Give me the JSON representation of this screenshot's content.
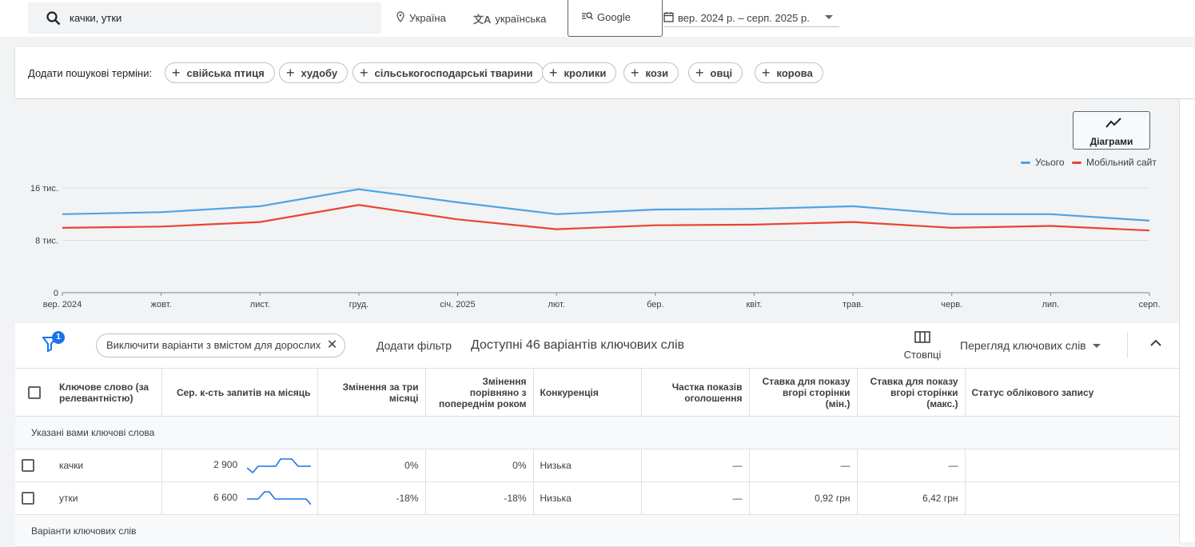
{
  "top": {
    "search_value": "качки, утки",
    "location": "Україна",
    "language": "українська",
    "network": "Google",
    "date_range": "вер. 2024 р. – серп. 2025 р."
  },
  "terms": {
    "label": "Додати пошукові терміни:",
    "items": [
      "свійська птиця",
      "худобу",
      "сільськогосподарські тварини",
      "кролики",
      "кози",
      "овці",
      "корова"
    ]
  },
  "chart_panel": {
    "diagram_button": "Діаграми",
    "legend_total": "Усього",
    "legend_mobile": "Мобільний сайт"
  },
  "chart_data": {
    "type": "line",
    "x": [
      "вер. 2024",
      "жовт.",
      "лист.",
      "груд.",
      "січ. 2025",
      "лют.",
      "бер.",
      "квіт.",
      "трав.",
      "черв.",
      "лип.",
      "серп."
    ],
    "yticks": [
      "16 тис.",
      "8 тис.",
      "0"
    ],
    "ylim": [
      0,
      16000
    ],
    "series": [
      {
        "name": "Усього",
        "color": "#4ea3e8",
        "values": [
          12000,
          12300,
          13200,
          15800,
          13800,
          12000,
          12700,
          12800,
          13200,
          12000,
          12000,
          11000
        ]
      },
      {
        "name": "Мобільний сайт",
        "color": "#ea4335",
        "values": [
          9900,
          10100,
          10800,
          13400,
          11200,
          9700,
          10300,
          10400,
          10800,
          9900,
          10200,
          9500
        ]
      }
    ],
    "grid": true,
    "legend": "top-right"
  },
  "toolbar": {
    "filter_count": "1",
    "exclude_chip": "Виключити варіанти з вмістом для дорослих",
    "add_filter": "Додати фільтр",
    "available": "Доступні 46 варіантів ключових слів",
    "columns": "Стовпці",
    "view": "Перегляд ключових слів"
  },
  "table": {
    "headers": {
      "keyword": "Ключове слово (за релевантністю)",
      "avg": "Сер. к-сть запитів на місяць",
      "three": "Змінення за три місяці",
      "yoy": "Змінення порівняно з попереднім роком",
      "comp": "Конкуренція",
      "share": "Частка показів оголошення",
      "bid_low": "Ставка для показу вгорі сторінки (мін.)",
      "bid_high": "Ставка для показу вгорі сторінки (макс.)",
      "status": "Статус облікового запису"
    },
    "section1": "Указані вами ключові слова",
    "rows": [
      {
        "keyword": "качки",
        "avg": "2 900",
        "three": "0%",
        "yoy": "0%",
        "comp": "Низька",
        "share": "—",
        "bid_low": "—",
        "bid_high": "—",
        "status": ""
      },
      {
        "keyword": "утки",
        "avg": "6 600",
        "three": "-18%",
        "yoy": "-18%",
        "comp": "Низька",
        "share": "—",
        "bid_low": "0,92 грн",
        "bid_high": "6,42 грн",
        "status": ""
      }
    ],
    "section2": "Варіанти ключових слів"
  }
}
